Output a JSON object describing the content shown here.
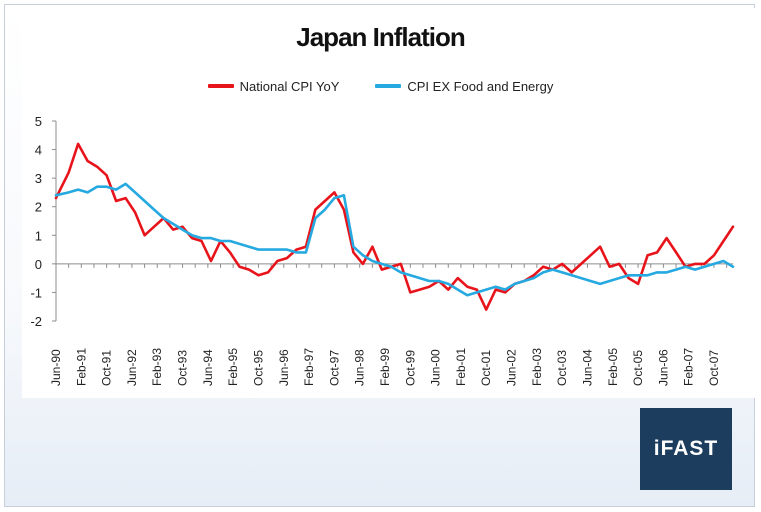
{
  "chart_data": {
    "type": "line",
    "title": "Japan Inflation",
    "xlabel": "",
    "ylabel": "",
    "ylim": [
      -2,
      5
    ],
    "yticks": [
      "5",
      "4",
      "3",
      "2",
      "1",
      "0",
      "-1",
      "-2"
    ],
    "grid": false,
    "legend_position": "top-center",
    "x_tick_labels": [
      "Jun-90",
      "Feb-91",
      "Oct-91",
      "Jun-92",
      "Feb-93",
      "Oct-93",
      "Jun-94",
      "Feb-95",
      "Oct-95",
      "Jun-96",
      "Feb-97",
      "Oct-97",
      "Jun-98",
      "Feb-99",
      "Oct-99",
      "Jun-00",
      "Feb-01",
      "Oct-01",
      "Jun-02",
      "Feb-03",
      "Oct-03",
      "Jun-04",
      "Feb-05",
      "Oct-05",
      "Jun-06",
      "Feb-07",
      "Oct-07"
    ],
    "x_range": [
      "1990-06",
      "2008-04"
    ],
    "series": [
      {
        "name": "National CPI YoY",
        "color": "#e8141b",
        "x": [
          "1990-06",
          "1990-10",
          "1991-01",
          "1991-04",
          "1991-07",
          "1991-10",
          "1992-01",
          "1992-04",
          "1992-07",
          "1992-10",
          "1993-01",
          "1993-04",
          "1993-07",
          "1993-10",
          "1994-01",
          "1994-04",
          "1994-07",
          "1994-10",
          "1995-01",
          "1995-04",
          "1995-07",
          "1995-10",
          "1996-01",
          "1996-04",
          "1996-07",
          "1996-10",
          "1997-01",
          "1997-04",
          "1997-07",
          "1997-10",
          "1998-01",
          "1998-04",
          "1998-07",
          "1998-10",
          "1999-01",
          "1999-04",
          "1999-07",
          "1999-10",
          "2000-01",
          "2000-04",
          "2000-07",
          "2000-10",
          "2001-01",
          "2001-04",
          "2001-07",
          "2001-10",
          "2002-01",
          "2002-04",
          "2002-07",
          "2002-10",
          "2003-01",
          "2003-04",
          "2003-07",
          "2003-10",
          "2004-01",
          "2004-04",
          "2004-07",
          "2004-10",
          "2005-01",
          "2005-04",
          "2005-07",
          "2005-10",
          "2006-01",
          "2006-04",
          "2006-07",
          "2006-10",
          "2007-01",
          "2007-04",
          "2007-07",
          "2007-10",
          "2008-01",
          "2008-04"
        ],
        "values": [
          2.3,
          3.2,
          4.2,
          3.6,
          3.4,
          3.1,
          2.2,
          2.3,
          1.8,
          1.0,
          1.3,
          1.6,
          1.2,
          1.3,
          0.9,
          0.8,
          0.1,
          0.8,
          0.4,
          -0.1,
          -0.2,
          -0.4,
          -0.3,
          0.1,
          0.2,
          0.5,
          0.6,
          1.9,
          2.2,
          2.5,
          1.9,
          0.4,
          0.0,
          0.6,
          -0.2,
          -0.1,
          0.0,
          -1.0,
          -0.9,
          -0.8,
          -0.6,
          -0.9,
          -0.5,
          -0.8,
          -0.9,
          -1.6,
          -0.9,
          -1.0,
          -0.7,
          -0.6,
          -0.4,
          -0.1,
          -0.2,
          0.0,
          -0.3,
          0.0,
          0.3,
          0.6,
          -0.1,
          0.0,
          -0.5,
          -0.7,
          0.3,
          0.4,
          0.9,
          0.4,
          -0.1,
          0.0,
          0.0,
          0.3,
          0.8,
          1.3
        ]
      },
      {
        "name": "CPI EX Food and Energy",
        "color": "#25a9e0",
        "x": [
          "1990-06",
          "1990-10",
          "1991-01",
          "1991-04",
          "1991-07",
          "1991-10",
          "1992-01",
          "1992-04",
          "1992-07",
          "1992-10",
          "1993-01",
          "1993-04",
          "1993-07",
          "1993-10",
          "1994-01",
          "1994-04",
          "1994-07",
          "1994-10",
          "1995-01",
          "1995-04",
          "1995-07",
          "1995-10",
          "1996-01",
          "1996-04",
          "1996-07",
          "1996-10",
          "1997-01",
          "1997-04",
          "1997-07",
          "1997-10",
          "1998-01",
          "1998-04",
          "1998-07",
          "1998-10",
          "1999-01",
          "1999-04",
          "1999-07",
          "1999-10",
          "2000-01",
          "2000-04",
          "2000-07",
          "2000-10",
          "2001-01",
          "2001-04",
          "2001-07",
          "2001-10",
          "2002-01",
          "2002-04",
          "2002-07",
          "2002-10",
          "2003-01",
          "2003-04",
          "2003-07",
          "2003-10",
          "2004-01",
          "2004-04",
          "2004-07",
          "2004-10",
          "2005-01",
          "2005-04",
          "2005-07",
          "2005-10",
          "2006-01",
          "2006-04",
          "2006-07",
          "2006-10",
          "2007-01",
          "2007-04",
          "2007-07",
          "2007-10",
          "2008-01",
          "2008-04"
        ],
        "values": [
          2.4,
          2.5,
          2.6,
          2.5,
          2.7,
          2.7,
          2.6,
          2.8,
          2.5,
          2.2,
          1.9,
          1.6,
          1.4,
          1.2,
          1.0,
          0.9,
          0.9,
          0.8,
          0.8,
          0.7,
          0.6,
          0.5,
          0.5,
          0.5,
          0.5,
          0.4,
          0.4,
          1.6,
          1.9,
          2.3,
          2.4,
          0.6,
          0.3,
          0.1,
          0.0,
          -0.1,
          -0.3,
          -0.4,
          -0.5,
          -0.6,
          -0.6,
          -0.7,
          -0.9,
          -1.1,
          -1.0,
          -0.9,
          -0.8,
          -0.9,
          -0.7,
          -0.6,
          -0.5,
          -0.3,
          -0.2,
          -0.3,
          -0.4,
          -0.5,
          -0.6,
          -0.7,
          -0.6,
          -0.5,
          -0.4,
          -0.4,
          -0.4,
          -0.3,
          -0.3,
          -0.2,
          -0.1,
          -0.2,
          -0.1,
          0.0,
          0.1,
          -0.1
        ]
      }
    ]
  },
  "brand": {
    "logo_text": "iFAST"
  },
  "colors": {
    "panel": "#ffffff",
    "axis": "#8c8c8c",
    "logo_bg": "#1c3d5e"
  }
}
